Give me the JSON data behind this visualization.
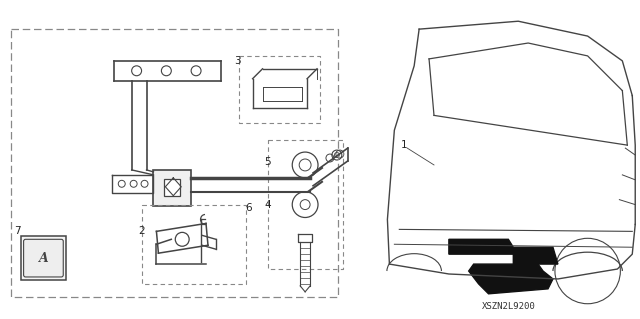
{
  "background_color": "#ffffff",
  "fig_width": 6.4,
  "fig_height": 3.19,
  "dpi": 100,
  "diagram_code_text": "XSZN2L9200",
  "diagram_code_fontsize": 6.5,
  "line_color": "#444444",
  "label_fontsize": 7.5
}
